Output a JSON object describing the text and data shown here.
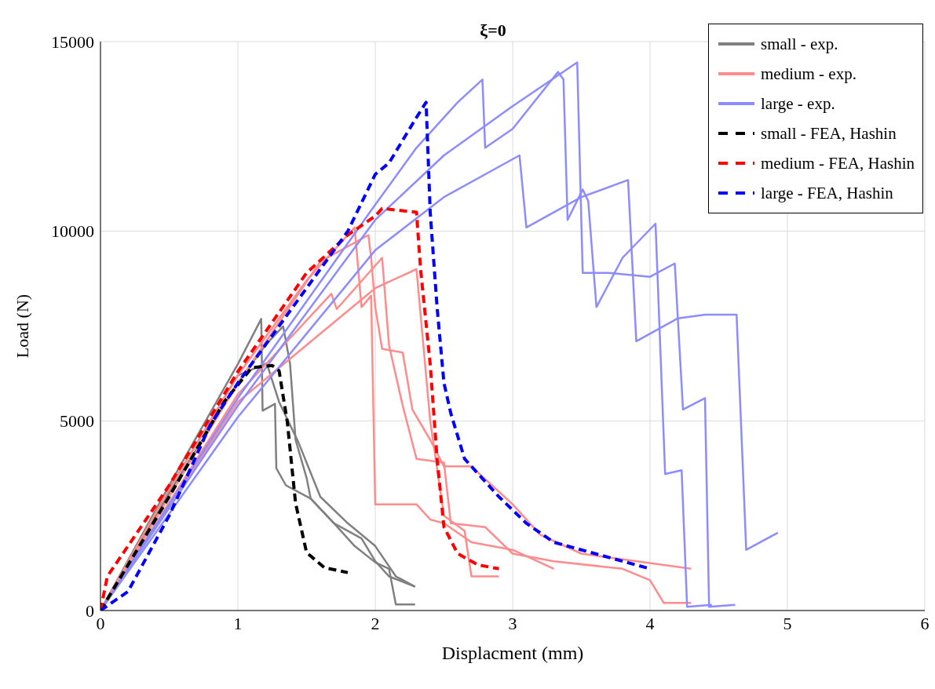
{
  "chart_data": {
    "type": "line",
    "title": "ξ=0",
    "xlabel": "Displacment (mm)",
    "ylabel": "Load (N)",
    "xlim": [
      0,
      6
    ],
    "xticks": [
      0,
      1,
      2,
      3,
      4,
      5,
      6
    ],
    "ylim": [
      0,
      15000
    ],
    "yticks": [
      0,
      5000,
      10000,
      15000
    ],
    "grid": true,
    "legend": "top right",
    "marker": "none",
    "series": [
      {
        "name": "small - exp.",
        "color": "#808080",
        "line_style": "solid",
        "x": [
          0,
          0.5,
          1.0,
          1.17,
          1.18,
          1.27,
          1.28,
          1.35,
          1.53,
          1.7,
          1.9,
          2.0,
          2.1,
          2.29
        ],
        "values": [
          0,
          3300,
          6500,
          7690,
          5270,
          5450,
          3750,
          3300,
          2950,
          2300,
          1900,
          1300,
          900,
          630
        ]
      },
      {
        "color": "#808080",
        "line_style": "solid",
        "x": [
          0,
          0.5,
          1.0,
          1.2,
          1.33,
          1.38,
          1.42,
          1.5,
          1.53,
          1.7,
          1.85,
          2.0,
          2.1,
          2.15,
          2.29
        ],
        "values": [
          0,
          3100,
          6000,
          7000,
          7490,
          6500,
          4500,
          3500,
          2950,
          2300,
          1700,
          1270,
          1100,
          160,
          160
        ]
      },
      {
        "color": "#808080",
        "line_style": "solid",
        "x": [
          0,
          0.5,
          1.0,
          1.21,
          1.3,
          1.44,
          1.6,
          1.8,
          2.0,
          2.15,
          2.29
        ],
        "values": [
          0,
          3200,
          6200,
          6520,
          5500,
          4440,
          3000,
          2300,
          1700,
          900,
          630
        ]
      },
      {
        "name": "medium - exp.",
        "color": "#ff8c8c",
        "line_style": "solid",
        "x": [
          0,
          0.5,
          1.0,
          1.5,
          1.85,
          1.9,
          1.97,
          2.0,
          2.3,
          2.4,
          2.5,
          2.7,
          3.0,
          3.3
        ],
        "values": [
          0,
          3200,
          6200,
          8700,
          10100,
          8000,
          8300,
          2800,
          2800,
          2400,
          2300,
          1800,
          1600,
          1100
        ]
      },
      {
        "color": "#ff8c8c",
        "line_style": "solid",
        "x": [
          0,
          1.0,
          1.6,
          1.95,
          1.97,
          2.0,
          2.05,
          2.2,
          2.27,
          2.4,
          2.5,
          2.7,
          3.0,
          3.2,
          3.5,
          4.3
        ],
        "values": [
          0,
          6000,
          9200,
          9900,
          9300,
          8000,
          6900,
          6800,
          5300,
          4500,
          3800,
          3800,
          2800,
          2000,
          1500,
          1100
        ]
      },
      {
        "color": "#ff8c8c",
        "line_style": "solid",
        "x": [
          0,
          1.0,
          1.68,
          1.72,
          2.05,
          2.1,
          2.2,
          2.3,
          2.5,
          2.55,
          2.8,
          3.0,
          3.3,
          3.8,
          4.0,
          4.1,
          4.3
        ],
        "values": [
          0,
          5700,
          8350,
          7950,
          9300,
          7000,
          5400,
          4000,
          3900,
          2300,
          2200,
          1500,
          1300,
          1100,
          800,
          200,
          200
        ]
      },
      {
        "color": "#ff8c8c",
        "line_style": "solid",
        "x": [
          0,
          1.0,
          2.0,
          2.3,
          2.4,
          2.5,
          2.65,
          2.7,
          2.9
        ],
        "values": [
          0,
          5500,
          8500,
          9000,
          5000,
          2500,
          2100,
          900,
          900
        ]
      },
      {
        "name": "large - exp.",
        "color": "#8c8cff",
        "line_style": "solid",
        "x": [
          0,
          1.0,
          2.0,
          2.3,
          2.6,
          2.78,
          2.8,
          3.0,
          3.33,
          3.37,
          3.4,
          3.51,
          3.55,
          3.61,
          3.8,
          4.04,
          4.11,
          4.23,
          4.27,
          4.45
        ],
        "values": [
          0,
          5600,
          10700,
          12200,
          13400,
          14000,
          12200,
          12700,
          14200,
          14000,
          10300,
          11100,
          10800,
          8000,
          9300,
          10200,
          3600,
          3700,
          100,
          150
        ]
      },
      {
        "color": "#8c8cff",
        "line_style": "solid",
        "x": [
          0,
          1.0,
          2.0,
          2.5,
          3.0,
          3.47,
          3.51,
          3.7,
          4.0,
          4.18,
          4.24,
          4.4,
          4.43,
          4.62
        ],
        "values": [
          0,
          5400,
          10300,
          12000,
          13300,
          14450,
          8900,
          8900,
          8800,
          9150,
          5300,
          5600,
          100,
          150
        ]
      },
      {
        "color": "#8c8cff",
        "line_style": "solid",
        "x": [
          0,
          1.0,
          2.0,
          2.5,
          2.9,
          3.05,
          3.1,
          3.5,
          3.84,
          3.9,
          4.2,
          4.4,
          4.63,
          4.7,
          4.93
        ],
        "values": [
          0,
          5100,
          9500,
          10900,
          11700,
          12000,
          10100,
          10900,
          11350,
          7100,
          7700,
          7800,
          7800,
          1600,
          2050
        ]
      },
      {
        "name": "small - FEA, Hashin",
        "color": "#000000",
        "line_style": "dashed",
        "x": [
          0,
          0.5,
          0.9,
          1.1,
          1.25,
          1.3,
          1.36,
          1.42,
          1.5,
          1.63,
          1.8
        ],
        "values": [
          0,
          3000,
          5500,
          6400,
          6460,
          6320,
          4970,
          2830,
          1530,
          1130,
          1000
        ]
      },
      {
        "name": "medium - FEA, Hashin",
        "color": "#ff0000",
        "line_style": "dashed",
        "x": [
          0,
          0.05,
          0.5,
          1.0,
          1.5,
          1.8,
          2.0,
          2.05,
          2.3,
          2.33,
          2.4,
          2.45,
          2.5,
          2.6,
          2.75,
          2.9
        ],
        "values": [
          0,
          900,
          3300,
          6300,
          8900,
          9900,
          10400,
          10600,
          10500,
          9000,
          6500,
          4000,
          2200,
          1500,
          1200,
          1100
        ]
      },
      {
        "name": "large - FEA, Hashin",
        "color": "#0000ff",
        "line_style": "dashed",
        "x": [
          0,
          0.2,
          0.5,
          0.8,
          1.0,
          1.3,
          1.6,
          1.8,
          2.0,
          2.1,
          2.3,
          2.37,
          2.4,
          2.45,
          2.5,
          2.55,
          2.65,
          2.75,
          2.9,
          3.1,
          3.3,
          3.6,
          3.8,
          4.0
        ],
        "values": [
          0,
          500,
          2500,
          4900,
          6000,
          7500,
          9000,
          10000,
          11500,
          11800,
          13000,
          13400,
          10500,
          8000,
          6000,
          5200,
          4000,
          3600,
          3000,
          2300,
          1800,
          1500,
          1300,
          1100
        ]
      }
    ]
  }
}
